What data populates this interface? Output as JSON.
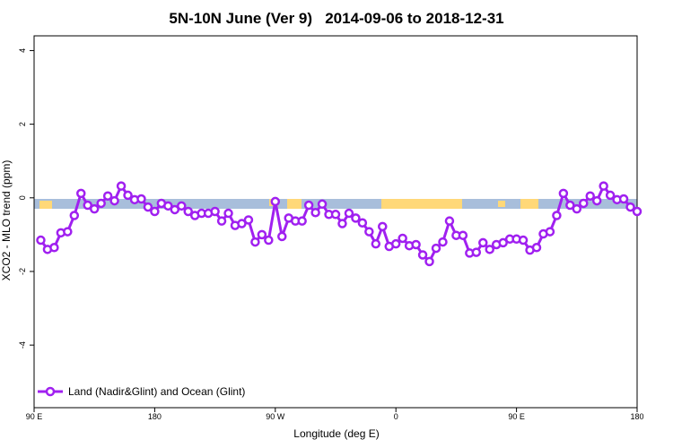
{
  "chart_data": {
    "type": "line",
    "title": "5N-10N June (Ver 9)   2014-09-06 to 2018-12-31",
    "x_label": "Longitude (deg E)",
    "y_label": "XCO2 - MLO trend (ppm)",
    "x": [
      95,
      100,
      105,
      110,
      115,
      120,
      125,
      130,
      135,
      140,
      145,
      150,
      155,
      160,
      165,
      170,
      175,
      180,
      185,
      190,
      195,
      200,
      205,
      210,
      215,
      220,
      225,
      230,
      235,
      240,
      245,
      250,
      255,
      260,
      265,
      270,
      275,
      280,
      285,
      290,
      295,
      300,
      305,
      310,
      315,
      320,
      325,
      330,
      335,
      340,
      345,
      350,
      355,
      360,
      365,
      370,
      375,
      380,
      385,
      390,
      395,
      400,
      405,
      410,
      415,
      420,
      425,
      430,
      435,
      440,
      445,
      450,
      455,
      460,
      465,
      470,
      475,
      480,
      485,
      490,
      495,
      500,
      505,
      510,
      515,
      520,
      525,
      530,
      535,
      540
    ],
    "series": [
      {
        "name": "Land (Nadir&Glint) and Ocean (Glint)",
        "color": "#a020f0",
        "values": [
          -1.15,
          -1.4,
          -1.35,
          -0.95,
          -0.92,
          -0.48,
          0.12,
          -0.2,
          -0.3,
          -0.15,
          0.05,
          -0.08,
          0.32,
          0.07,
          -0.05,
          -0.03,
          -0.25,
          -0.37,
          -0.15,
          -0.22,
          -0.32,
          -0.22,
          -0.37,
          -0.48,
          -0.42,
          -0.42,
          -0.37,
          -0.63,
          -0.42,
          -0.75,
          -0.7,
          -0.6,
          -1.2,
          -1.0,
          -1.15,
          -0.1,
          -1.05,
          -0.55,
          -0.63,
          -0.63,
          -0.2,
          -0.4,
          -0.17,
          -0.45,
          -0.45,
          -0.7,
          -0.42,
          -0.55,
          -0.68,
          -0.92,
          -1.25,
          -0.78,
          -1.32,
          -1.25,
          -1.1,
          -1.3,
          -1.27,
          -1.55,
          -1.73,
          -1.37,
          -1.2,
          -0.63,
          -1.02,
          -1.02,
          -1.5,
          -1.48,
          -1.22,
          -1.4,
          -1.27,
          -1.22,
          -1.12,
          -1.12,
          -1.15,
          -1.42,
          -1.35,
          -0.98,
          -0.92,
          -0.48,
          0.12,
          -0.2,
          -0.3,
          -0.15,
          0.05,
          -0.08,
          0.32,
          0.07,
          -0.05,
          -0.03,
          -0.25,
          -0.37
        ]
      }
    ],
    "xlim": [
      90,
      540
    ],
    "xticks": [
      {
        "value": 90,
        "label": "90 E"
      },
      180,
      {
        "value": 270,
        "label": "90 W"
      },
      {
        "value": 360,
        "label": "0"
      },
      {
        "value": 450,
        "label": "90 E"
      },
      {
        "value": 540,
        "label": "180"
      }
    ],
    "ylim": [
      -5.7,
      4.4
    ],
    "yticks": [
      -4,
      -2,
      0,
      2,
      4
    ],
    "grid": false,
    "legend": "bottom-left"
  }
}
